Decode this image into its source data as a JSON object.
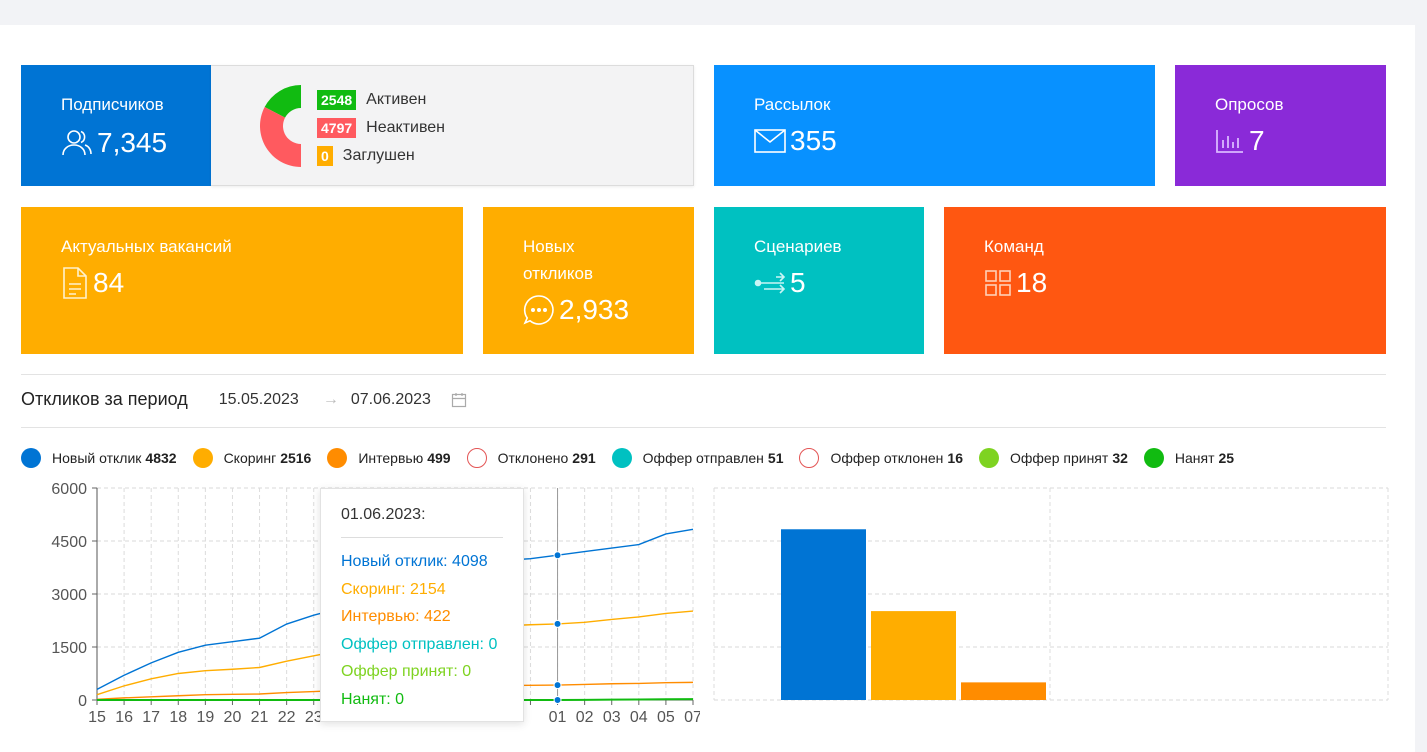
{
  "colors": {
    "new": "#0074d4",
    "scoring": "#ffad00",
    "interview": "#ff8c00",
    "rejected": "#e35555",
    "offer_sent": "#00c1c1",
    "offer_declined": "#e35555",
    "offer_accepted": "#7ed321",
    "hired": "#11bb11"
  },
  "cards": {
    "subscribers": {
      "label": "Подписчиков",
      "value": "7,345",
      "icon": "users-icon"
    },
    "mailings": {
      "label": "Рассылок",
      "value": "355",
      "icon": "envelope-icon"
    },
    "polls": {
      "label": "Опросов",
      "value": "7",
      "icon": "bar-chart-icon"
    },
    "vacancies": {
      "label": "Актуальных вакансий",
      "value": "84",
      "icon": "document-icon"
    },
    "responses": {
      "label": "Новых откликов",
      "value": "2,933",
      "icon": "chat-icon"
    },
    "scenarios": {
      "label": "Сценариев",
      "value": "5",
      "icon": "flow-icon"
    },
    "commands": {
      "label": "Команд",
      "value": "18",
      "icon": "grid-icon"
    }
  },
  "subscriber_status": [
    {
      "count": "2548",
      "label": "Активен",
      "color": "#11bb11",
      "value": 2548
    },
    {
      "count": "4797",
      "label": "Неактивен",
      "color": "#ff5a5f",
      "value": 4797
    },
    {
      "count": "0",
      "label": "Заглушен",
      "color": "#ffad00",
      "value": 0
    }
  ],
  "period": {
    "title": "Откликов за период",
    "from": "15.05.2023",
    "to": "07.06.2023"
  },
  "legend": [
    {
      "label": "Новый отклик",
      "count": "4832",
      "color": "#0074d4",
      "hollow": false
    },
    {
      "label": "Скоринг",
      "count": "2516",
      "color": "#ffad00",
      "hollow": false
    },
    {
      "label": "Интервью",
      "count": "499",
      "color": "#ff8c00",
      "hollow": false
    },
    {
      "label": "Отклонено",
      "count": "291",
      "color": "#e35555",
      "hollow": true
    },
    {
      "label": "Оффер отправлен",
      "count": "51",
      "color": "#00c1c1",
      "hollow": false
    },
    {
      "label": "Оффер отклонен",
      "count": "16",
      "color": "#e35555",
      "hollow": true
    },
    {
      "label": "Оффер принят",
      "count": "32",
      "color": "#7ed321",
      "hollow": false
    },
    {
      "label": "Нанят",
      "count": "25",
      "color": "#11bb11",
      "hollow": false
    }
  ],
  "tooltip": {
    "date": "01.06.2023:",
    "rows": [
      {
        "text": "Новый отклик: 4098",
        "color": "#0074d4"
      },
      {
        "text": "Скоринг: 2154",
        "color": "#ffad00"
      },
      {
        "text": "Интервью: 422",
        "color": "#ff8c00"
      },
      {
        "text": "Оффер отправлен: 0",
        "color": "#00c1c1"
      },
      {
        "text": "Оффер принят: 0",
        "color": "#7ed321"
      },
      {
        "text": "Нанят: 0",
        "color": "#11bb11"
      }
    ]
  },
  "chart_data": [
    {
      "type": "line",
      "ylim": [
        0,
        6000
      ],
      "yticks": [
        0,
        1500,
        3000,
        4500,
        6000
      ],
      "x": [
        "15",
        "16",
        "17",
        "18",
        "19",
        "20",
        "21",
        "22",
        "23",
        "24",
        "25",
        "26",
        "27",
        "28",
        "29",
        "30",
        "31",
        "01",
        "02",
        "03",
        "04",
        "05",
        "07"
      ],
      "xtick_labels": [
        "15",
        "16",
        "17",
        "18",
        "19",
        "20",
        "21",
        "22",
        "23",
        "",
        "",
        "",
        "",
        "",
        "",
        "",
        "",
        "01",
        "02",
        "03",
        "04",
        "05",
        "07"
      ],
      "highlight_x": "01",
      "series": [
        {
          "name": "Новый отклик",
          "color": "#0074d4",
          "values": [
            300,
            700,
            1050,
            1350,
            1550,
            1650,
            1750,
            2150,
            2400,
            2600,
            2850,
            3100,
            3350,
            3600,
            3800,
            3950,
            4000,
            4098,
            4200,
            4300,
            4400,
            4700,
            4832
          ]
        },
        {
          "name": "Скоринг",
          "color": "#ffad00",
          "values": [
            150,
            400,
            600,
            750,
            830,
            870,
            920,
            1100,
            1250,
            1400,
            1550,
            1700,
            1850,
            1950,
            2050,
            2100,
            2130,
            2154,
            2200,
            2280,
            2350,
            2450,
            2516
          ]
        },
        {
          "name": "Интервью",
          "color": "#ff8c00",
          "values": [
            20,
            60,
            90,
            120,
            150,
            160,
            170,
            210,
            240,
            270,
            300,
            330,
            360,
            380,
            400,
            410,
            415,
            422,
            440,
            460,
            470,
            490,
            499
          ]
        },
        {
          "name": "Нанят",
          "color": "#11bb11",
          "values": [
            0,
            0,
            0,
            0,
            0,
            0,
            0,
            0,
            0,
            0,
            0,
            0,
            0,
            0,
            0,
            0,
            0,
            0,
            5,
            10,
            15,
            20,
            25
          ]
        }
      ]
    },
    {
      "type": "bar",
      "ylim": [
        0,
        6000
      ],
      "categories": [
        "Новый отклик",
        "Скоринг",
        "Интервью"
      ],
      "values": [
        4832,
        2516,
        499
      ],
      "colors": [
        "#0074d4",
        "#ffad00",
        "#ff8c00"
      ]
    }
  ]
}
